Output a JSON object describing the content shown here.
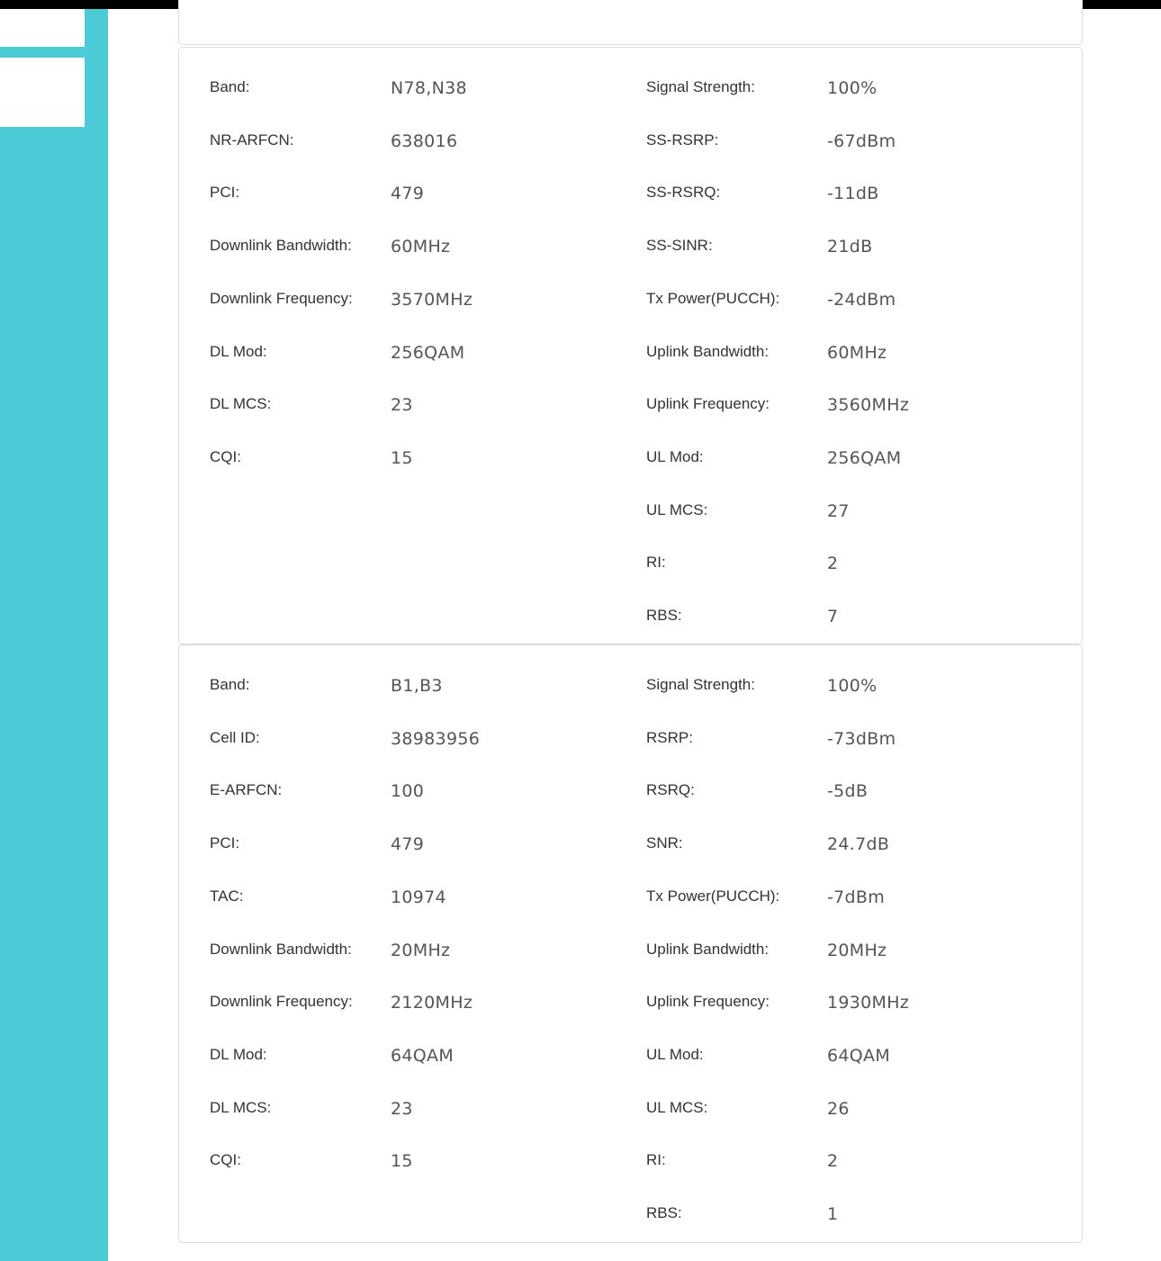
{
  "nr_card": {
    "left": [
      {
        "label": "Band:",
        "value": "N78,N38"
      },
      {
        "label": "NR-ARFCN:",
        "value": "638016"
      },
      {
        "label": "PCI:",
        "value": "479"
      },
      {
        "label": "Downlink Bandwidth:",
        "value": "60MHz"
      },
      {
        "label": "Downlink Frequency:",
        "value": "3570MHz"
      },
      {
        "label": "DL Mod:",
        "value": "256QAM"
      },
      {
        "label": "DL MCS:",
        "value": "23"
      },
      {
        "label": "CQI:",
        "value": "15"
      }
    ],
    "right": [
      {
        "label": "Signal Strength:",
        "value": "100%"
      },
      {
        "label": "SS-RSRP:",
        "value": "-67dBm"
      },
      {
        "label": "SS-RSRQ:",
        "value": "-11dB"
      },
      {
        "label": "SS-SINR:",
        "value": "21dB"
      },
      {
        "label": "Tx Power(PUCCH):",
        "value": "-24dBm"
      },
      {
        "label": "Uplink Bandwidth:",
        "value": "60MHz"
      },
      {
        "label": "Uplink Frequency:",
        "value": "3560MHz"
      },
      {
        "label": "UL Mod:",
        "value": "256QAM"
      },
      {
        "label": "UL MCS:",
        "value": "27"
      },
      {
        "label": "RI:",
        "value": "2"
      },
      {
        "label": "RBS:",
        "value": "7"
      }
    ]
  },
  "lte_card": {
    "left": [
      {
        "label": "Band:",
        "value": "B1,B3"
      },
      {
        "label": "Cell ID:",
        "value": "38983956"
      },
      {
        "label": "E-ARFCN:",
        "value": "100"
      },
      {
        "label": "PCI:",
        "value": "479"
      },
      {
        "label": "TAC:",
        "value": "10974"
      },
      {
        "label": "Downlink Bandwidth:",
        "value": "20MHz"
      },
      {
        "label": "Downlink Frequency:",
        "value": "2120MHz"
      },
      {
        "label": "DL Mod:",
        "value": "64QAM"
      },
      {
        "label": "DL MCS:",
        "value": "23"
      },
      {
        "label": "CQI:",
        "value": "15"
      }
    ],
    "right": [
      {
        "label": "Signal Strength:",
        "value": "100%"
      },
      {
        "label": "RSRP:",
        "value": "-73dBm"
      },
      {
        "label": "RSRQ:",
        "value": "-5dB"
      },
      {
        "label": "SNR:",
        "value": "24.7dB"
      },
      {
        "label": "Tx Power(PUCCH):",
        "value": "-7dBm"
      },
      {
        "label": "Uplink Bandwidth:",
        "value": "20MHz"
      },
      {
        "label": "Uplink Frequency:",
        "value": "1930MHz"
      },
      {
        "label": "UL Mod:",
        "value": "64QAM"
      },
      {
        "label": "UL MCS:",
        "value": "26"
      },
      {
        "label": "RI:",
        "value": "2"
      },
      {
        "label": "RBS:",
        "value": "1"
      }
    ]
  }
}
